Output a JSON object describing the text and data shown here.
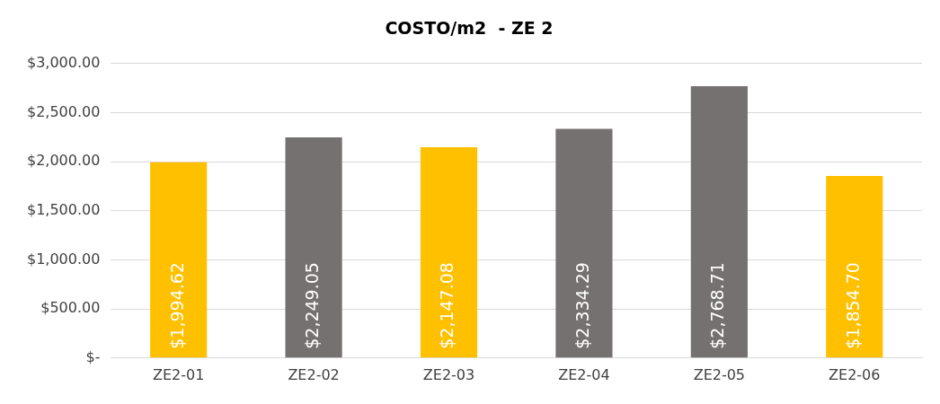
{
  "chart_data": {
    "type": "bar",
    "title": "COSTO/m2  - ZE 2",
    "categories": [
      "ZE2-01",
      "ZE2-02",
      "ZE2-03",
      "ZE2-04",
      "ZE2-05",
      "ZE2-06"
    ],
    "values": [
      1994.62,
      2249.05,
      2147.08,
      2334.29,
      2768.71,
      1854.7
    ],
    "colors": [
      "#ffc000",
      "#767171",
      "#ffc000",
      "#767171",
      "#767171",
      "#ffc000"
    ],
    "value_labels": [
      "$1,994.62",
      "$2,249.05",
      "$2,147.08",
      "$2,334.29",
      "$2,768.71",
      "$1,854.70"
    ],
    "ylim": [
      0,
      3000
    ],
    "yticks": [
      {
        "value": 0,
        "label": "$-"
      },
      {
        "value": 500,
        "label": "$500.00"
      },
      {
        "value": 1000,
        "label": "$1,000.00"
      },
      {
        "value": 1500,
        "label": "$1,500.00"
      },
      {
        "value": 2000,
        "label": "$2,000.00"
      },
      {
        "value": 2500,
        "label": "$2,500.00"
      },
      {
        "value": 3000,
        "label": "$3,000.00"
      }
    ],
    "grid": "y",
    "legend": false
  }
}
